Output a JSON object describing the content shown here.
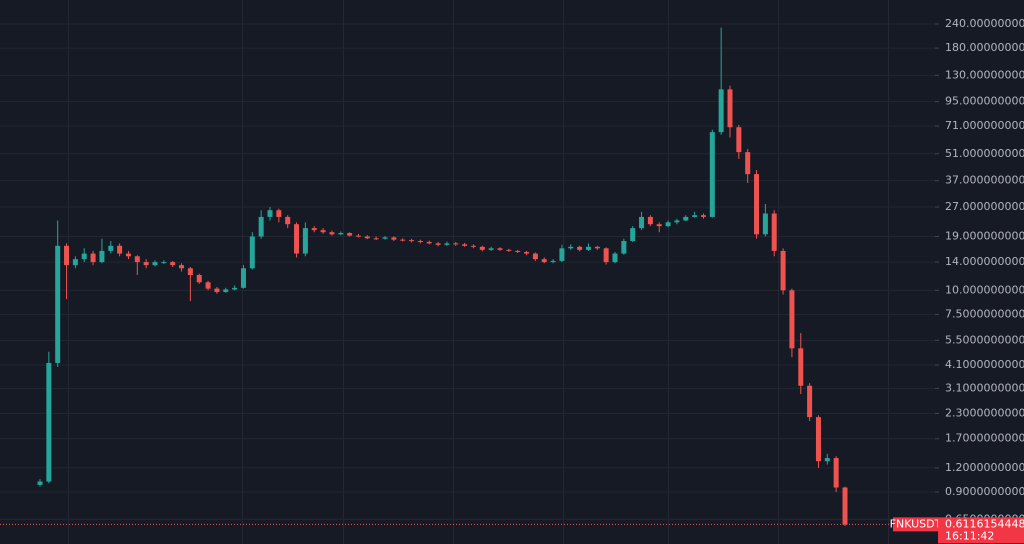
{
  "chart_data": {
    "type": "candlestick",
    "symbol": "FNKUSDT",
    "last_price": 0.6116154448,
    "countdown": "16:11:42",
    "log_scale": true,
    "grid": true,
    "up_color": "#26a69a",
    "down_color": "#ef5350",
    "ylim": [
      0.484,
      319.6
    ],
    "yticks": [
      {
        "value": 240,
        "label": "240.0000000000"
      },
      {
        "value": 180,
        "label": "180.0000000000"
      },
      {
        "value": 130,
        "label": "130.0000000000"
      },
      {
        "value": 95,
        "label": "95.0000000000"
      },
      {
        "value": 71,
        "label": "71.0000000000"
      },
      {
        "value": 51,
        "label": "51.0000000000"
      },
      {
        "value": 37,
        "label": "37.0000000000"
      },
      {
        "value": 27,
        "label": "27.0000000000"
      },
      {
        "value": 19,
        "label": "19.0000000000"
      },
      {
        "value": 14,
        "label": "14.0000000000"
      },
      {
        "value": 10,
        "label": "10.0000000000"
      },
      {
        "value": 7.5,
        "label": "7.5000000000"
      },
      {
        "value": 5.5,
        "label": "5.5000000000"
      },
      {
        "value": 4.1,
        "label": "4.1000000000"
      },
      {
        "value": 3.1,
        "label": "3.1000000000"
      },
      {
        "value": 2.3,
        "label": "2.3000000000"
      },
      {
        "value": 1.7,
        "label": "1.7000000000"
      },
      {
        "value": 1.2,
        "label": "1.2000000000"
      },
      {
        "value": 0.9,
        "label": "0.9000000000"
      },
      {
        "value": 0.65,
        "label": "0.6500000000"
      }
    ],
    "open": [
      0.98,
      1.02,
      4.2,
      17,
      13.5,
      14.5,
      15.5,
      14,
      16,
      17,
      15.5,
      15,
      14,
      13.5,
      14,
      14,
      13.5,
      13,
      12,
      11,
      10.2,
      9.8,
      10.1,
      10.3,
      13,
      19,
      24,
      26,
      24,
      22,
      15.5,
      21,
      20.5,
      20,
      19.5,
      19.8,
      19.2,
      19,
      18.6,
      18.5,
      18.8,
      18.3,
      18.2,
      18,
      17.8,
      17.5,
      17.2,
      17.5,
      17.3,
      17,
      16.8,
      16.2,
      16.5,
      16.2,
      16,
      15.8,
      15.5,
      14.5,
      14,
      14.2,
      16.5,
      16.8,
      16.2,
      16.8,
      16.5,
      14,
      15.5,
      18,
      21,
      24,
      22,
      21.5,
      22.5,
      23,
      24,
      24.5,
      24,
      66,
      110,
      70,
      52,
      40,
      19.5,
      25,
      16,
      10,
      5,
      3.2,
      2.2,
      1.3,
      1.35,
      0.95
    ],
    "high": [
      1.05,
      4.8,
      23,
      17.5,
      15,
      16.5,
      16,
      18.5,
      18,
      17.5,
      16,
      15.2,
      14.5,
      14.3,
      14.3,
      14.2,
      13.8,
      13.2,
      12.2,
      11.2,
      10.4,
      10.3,
      10.6,
      13.5,
      20,
      26,
      27,
      26.5,
      24.5,
      22.5,
      22.5,
      21.5,
      21,
      20.4,
      20.2,
      20,
      19.6,
      19.3,
      19,
      19.1,
      19,
      18.6,
      18.5,
      18.3,
      18.1,
      17.8,
      17.9,
      17.8,
      17.6,
      17.3,
      17,
      16.8,
      16.7,
      16.4,
      16.2,
      16,
      15.7,
      14.8,
      14.5,
      17.2,
      17.3,
      17,
      17.5,
      17,
      16.7,
      15.8,
      18.5,
      21.5,
      25.5,
      24.5,
      22.5,
      23,
      23.5,
      24.5,
      25.5,
      25,
      68,
      230,
      115,
      72,
      54,
      42,
      28,
      26,
      16.5,
      10.2,
      6,
      3.3,
      2.25,
      1.42,
      1.38,
      0.96
    ],
    "low": [
      0.96,
      1.0,
      4.0,
      9,
      13,
      14,
      13.5,
      13.8,
      15.5,
      15,
      14.5,
      12,
      13,
      13.3,
      13.7,
      13.2,
      12.5,
      8.8,
      10.8,
      10,
      9.6,
      9.7,
      10,
      10.2,
      12.8,
      18.5,
      23,
      22.5,
      21,
      14.8,
      15,
      20,
      19.6,
      19.2,
      19.3,
      19,
      18.8,
      18.4,
      18.2,
      18.3,
      18,
      17.9,
      17.7,
      17.5,
      17.3,
      16.9,
      17,
      17,
      16.8,
      16.5,
      15.9,
      16,
      16,
      15.8,
      15.6,
      15.2,
      14.2,
      13.8,
      13.8,
      14,
      16.2,
      15.9,
      16,
      16.2,
      13.6,
      13.8,
      15.3,
      17.8,
      20.5,
      21.5,
      20,
      21.2,
      22,
      22.8,
      23.8,
      23.5,
      23.8,
      64,
      62,
      48,
      36,
      18.5,
      19,
      15,
      9.5,
      4.5,
      2.9,
      2.1,
      1.2,
      1.25,
      0.9,
      0.6
    ],
    "close": [
      1.02,
      4.2,
      17,
      13.5,
      14.5,
      15.5,
      14,
      16,
      17,
      15.5,
      15,
      14,
      13.5,
      14,
      14,
      13.5,
      13,
      12,
      11,
      10.2,
      9.8,
      10.1,
      10.3,
      13,
      19,
      24,
      26,
      24,
      22,
      15.5,
      21,
      20.5,
      20,
      19.5,
      19.8,
      19.2,
      19,
      18.6,
      18.5,
      18.8,
      18.3,
      18.2,
      18,
      17.8,
      17.5,
      17.2,
      17.5,
      17.3,
      17,
      16.8,
      16.2,
      16.5,
      16.2,
      16,
      15.8,
      15.5,
      14.5,
      14,
      14.2,
      16.5,
      16.8,
      16.2,
      16.8,
      16.5,
      14,
      15.5,
      18,
      21,
      24,
      22,
      21.5,
      22.5,
      23,
      24,
      24.5,
      24,
      66,
      110,
      70,
      52,
      40,
      19.5,
      25,
      16,
      10,
      5,
      3.2,
      2.2,
      1.3,
      1.35,
      0.95,
      0.61
    ]
  }
}
